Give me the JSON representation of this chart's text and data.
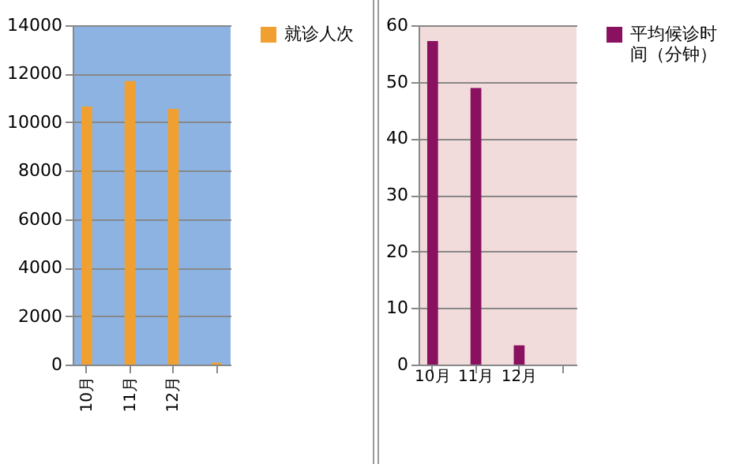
{
  "chart_data": [
    {
      "type": "bar",
      "categories": [
        "10月",
        "11月",
        "12月",
        null
      ],
      "series": [
        {
          "name": "就诊人次",
          "color": "#f0a030",
          "values": [
            10650,
            11700,
            10550,
            80
          ]
        }
      ],
      "ylim": [
        0,
        14000
      ],
      "yticks": [
        0,
        2000,
        4000,
        6000,
        8000,
        10000,
        12000,
        14000
      ],
      "grid": "y",
      "legend": "right"
    },
    {
      "type": "bar",
      "categories": [
        "10月",
        "11月",
        "12月",
        null
      ],
      "series": [
        {
          "name": "平均候诊时间（分钟）",
          "color": "#8a1060",
          "values": [
            57.2,
            48.9,
            3.4,
            null
          ]
        }
      ],
      "ylim": [
        0,
        60
      ],
      "yticks": [
        0,
        10,
        20,
        30,
        40,
        50,
        60
      ],
      "grid": "y",
      "legend": "right"
    }
  ]
}
